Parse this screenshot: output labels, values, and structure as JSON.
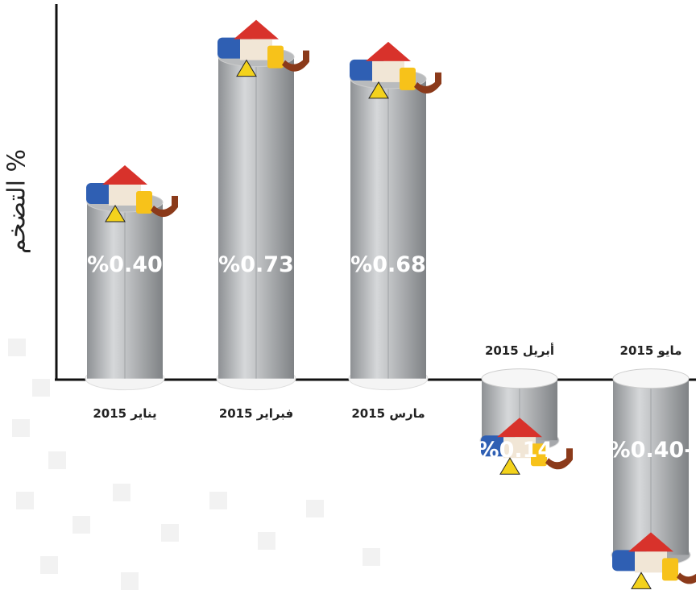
{
  "chart_data": {
    "type": "bar",
    "y_label": "التضخم %",
    "categories": [
      "يناير 2015",
      "فبراير 2015",
      "مارس 2015",
      "أبريل 2015",
      "مايو 2015"
    ],
    "values": [
      0.4,
      0.73,
      0.68,
      -0.14,
      -0.4
    ],
    "value_labels": [
      "%0.40",
      "%0.73",
      "%0.68",
      "%0.14-",
      "%0.40-"
    ],
    "color": "#b9bbbd",
    "ylim": [
      -0.5,
      0.85
    ]
  }
}
